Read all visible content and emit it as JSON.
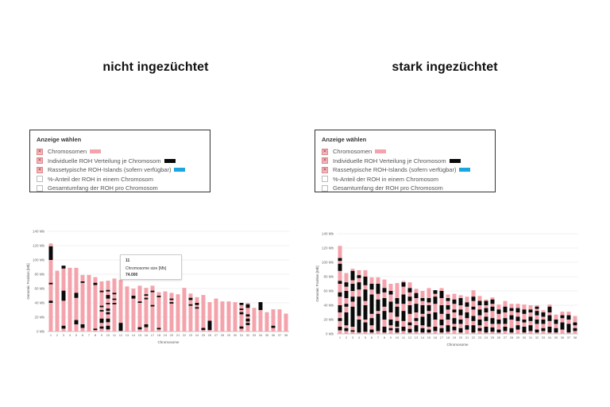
{
  "colors": {
    "chromosome": "#f4a3ac",
    "roh": "#0a0a0a",
    "islands": "#1aa7e0"
  },
  "legend": {
    "title": "Anzeige wählen",
    "items": [
      {
        "label": "Chromosomen",
        "checked": true,
        "swatch": "chromosome"
      },
      {
        "label": "Individuelle ROH Verteilung je Chromosom",
        "checked": true,
        "swatch": "roh"
      },
      {
        "label": "Rassetypische ROH-Islands (sofern verfügbar)",
        "checked": true,
        "swatch": "islands"
      },
      {
        "label": "%-Anteil der ROH in einem Chromosom",
        "checked": false,
        "swatch": ""
      },
      {
        "label": "Gesamtumfang der ROH pro Chromosom",
        "checked": false,
        "swatch": ""
      }
    ]
  },
  "panels": [
    {
      "heading": "nicht ingezüchtet",
      "tooltip": {
        "title": "11",
        "label": "Chromosome size [Mb]",
        "value": "74.000"
      }
    },
    {
      "heading": "stark ingezüchtet"
    }
  ],
  "chart_data": [
    {
      "type": "bar",
      "title": "nicht ingezüchtet",
      "xlabel": "Chromosome",
      "ylabel": "Genomic Position [Mb]",
      "ylim": [
        0,
        140
      ],
      "yticks": [
        0,
        20,
        40,
        60,
        80,
        100,
        120,
        140
      ],
      "ytick_labels": [
        "0 Mb",
        "20 Mb",
        "40 Mb",
        "60 Mb",
        "80 Mb",
        "100 Mb",
        "120 Mb",
        "140 Mb"
      ],
      "categories": [
        "1",
        "2",
        "3",
        "4",
        "5",
        "6",
        "7",
        "8",
        "9",
        "10",
        "11",
        "12",
        "13",
        "14",
        "15",
        "16",
        "17",
        "18",
        "19",
        "20",
        "21",
        "22",
        "23",
        "24",
        "25",
        "26",
        "27",
        "28",
        "29",
        "30",
        "31",
        "32",
        "33",
        "34",
        "35",
        "36",
        "37",
        "38"
      ],
      "values": [
        123,
        85,
        91,
        89,
        89,
        79,
        79,
        76,
        70,
        71,
        74,
        72,
        63,
        60,
        64,
        61,
        64,
        55,
        56,
        54,
        52,
        61,
        53,
        48,
        51,
        41,
        46,
        42,
        42,
        41,
        40,
        40,
        33,
        41,
        27,
        31,
        31,
        25
      ],
      "roh_segments": [
        [
          [
            40,
            43
          ],
          [
            66,
            68
          ],
          [
            100,
            119
          ]
        ],
        [],
        [
          [
            4,
            8
          ],
          [
            43,
            57
          ],
          [
            88,
            92
          ]
        ],
        [],
        [
          [
            10,
            16
          ],
          [
            47,
            54
          ]
        ],
        [
          [
            5,
            10
          ],
          [
            68,
            70
          ]
        ],
        [],
        [
          [
            2,
            4
          ],
          [
            65,
            68
          ]
        ],
        [
          [
            4,
            7
          ],
          [
            12,
            18
          ],
          [
            28,
            30
          ],
          [
            34,
            36
          ],
          [
            55,
            57
          ]
        ],
        [
          [
            3,
            8
          ],
          [
            13,
            18
          ],
          [
            24,
            27
          ],
          [
            29,
            32
          ],
          [
            38,
            40
          ],
          [
            46,
            51
          ],
          [
            56,
            58
          ]
        ],
        [
          [
            38,
            40
          ],
          [
            44,
            46
          ],
          [
            52,
            54
          ]
        ],
        [
          [
            1,
            12
          ]
        ],
        [],
        [
          [
            46,
            50
          ]
        ],
        [
          [
            3,
            6
          ],
          [
            40,
            42
          ]
        ],
        [
          [
            6,
            10
          ],
          [
            45,
            47
          ],
          [
            50,
            52
          ]
        ],
        [
          [
            35,
            37
          ],
          [
            55,
            57
          ]
        ],
        [
          [
            3,
            5
          ],
          [
            48,
            50
          ]
        ],
        [],
        [
          [
            39,
            41
          ],
          [
            44,
            46
          ]
        ],
        [],
        [],
        [
          [
            36,
            38
          ],
          [
            44,
            47
          ]
        ],
        [
          [
            32,
            34
          ],
          [
            37,
            40
          ]
        ],
        [
          [
            2,
            5
          ]
        ],
        [
          [
            2,
            15
          ]
        ],
        [],
        [],
        [],
        [],
        [
          [
            4,
            7
          ],
          [
            24,
            27
          ],
          [
            30,
            32
          ],
          [
            37,
            40
          ]
        ],
        [
          [
            9,
            12
          ],
          [
            14,
            18
          ],
          [
            21,
            24
          ],
          [
            33,
            38
          ]
        ],
        [],
        [
          [
            30,
            41
          ]
        ],
        [],
        [
          [
            5,
            8
          ]
        ],
        [],
        []
      ]
    },
    {
      "type": "bar",
      "title": "stark ingezüchtet",
      "xlabel": "Chromosome",
      "ylabel": "Genomic Position [Mb]",
      "ylim": [
        0,
        140
      ],
      "yticks": [
        0,
        20,
        40,
        60,
        80,
        100,
        120,
        140
      ],
      "ytick_labels": [
        "0 Mb",
        "20 Mb",
        "40 Mb",
        "60 Mb",
        "80 Mb",
        "100 Mb",
        "120 Mb",
        "140 Mb"
      ],
      "categories": [
        "1",
        "2",
        "3",
        "4",
        "5",
        "6",
        "7",
        "8",
        "9",
        "10",
        "11",
        "12",
        "13",
        "14",
        "15",
        "16",
        "17",
        "18",
        "19",
        "20",
        "21",
        "22",
        "23",
        "24",
        "25",
        "26",
        "27",
        "28",
        "29",
        "30",
        "31",
        "32",
        "33",
        "34",
        "35",
        "36",
        "37",
        "38"
      ],
      "values": [
        123,
        85,
        91,
        89,
        89,
        79,
        79,
        76,
        70,
        71,
        74,
        72,
        63,
        60,
        64,
        61,
        64,
        55,
        56,
        54,
        52,
        61,
        53,
        48,
        51,
        41,
        46,
        42,
        42,
        41,
        40,
        40,
        33,
        41,
        27,
        31,
        31,
        25
      ],
      "roh_segments": [
        [
          [
            5,
            10
          ],
          [
            18,
            22
          ],
          [
            30,
            40
          ],
          [
            52,
            58
          ],
          [
            70,
            74
          ],
          [
            88,
            98
          ],
          [
            102,
            106
          ]
        ],
        [
          [
            4,
            8
          ],
          [
            12,
            30
          ],
          [
            38,
            42
          ],
          [
            50,
            60
          ],
          [
            66,
            72
          ]
        ],
        [
          [
            3,
            5
          ],
          [
            10,
            38
          ],
          [
            45,
            52
          ],
          [
            60,
            70
          ],
          [
            75,
            88
          ]
        ],
        [
          [
            2,
            20
          ],
          [
            25,
            52
          ],
          [
            62,
            72
          ],
          [
            78,
            82
          ]
        ],
        [
          [
            3,
            16
          ],
          [
            20,
            40
          ],
          [
            46,
            62
          ],
          [
            68,
            80
          ]
        ],
        [
          [
            2,
            6
          ],
          [
            12,
            22
          ],
          [
            28,
            55
          ],
          [
            62,
            70
          ]
        ],
        [
          [
            4,
            28
          ],
          [
            32,
            48
          ],
          [
            56,
            70
          ]
        ],
        [
          [
            2,
            10
          ],
          [
            20,
            32
          ],
          [
            38,
            50
          ],
          [
            58,
            64
          ]
        ],
        [
          [
            5,
            8
          ],
          [
            12,
            20
          ],
          [
            30,
            45
          ],
          [
            55,
            60
          ]
        ],
        [
          [
            2,
            8
          ],
          [
            10,
            18
          ],
          [
            24,
            38
          ],
          [
            42,
            50
          ]
        ],
        [
          [
            4,
            10
          ],
          [
            18,
            32
          ],
          [
            42,
            55
          ],
          [
            66,
            72
          ]
        ],
        [
          [
            2,
            7
          ],
          [
            12,
            16
          ],
          [
            28,
            40
          ],
          [
            46,
            52
          ],
          [
            58,
            64
          ]
        ],
        [
          [
            3,
            12
          ],
          [
            18,
            22
          ],
          [
            30,
            42
          ],
          [
            50,
            57
          ]
        ],
        [
          [
            2,
            8
          ],
          [
            12,
            24
          ],
          [
            28,
            40
          ],
          [
            46,
            50
          ]
        ],
        [
          [
            2,
            6
          ],
          [
            10,
            28
          ],
          [
            32,
            40
          ],
          [
            44,
            50
          ]
        ],
        [
          [
            4,
            10
          ],
          [
            20,
            30
          ],
          [
            42,
            52
          ],
          [
            56,
            61
          ]
        ],
        [
          [
            2,
            8
          ],
          [
            12,
            20
          ],
          [
            28,
            40
          ],
          [
            50,
            60
          ]
        ],
        [
          [
            3,
            12
          ],
          [
            20,
            28
          ],
          [
            34,
            40
          ],
          [
            46,
            50
          ]
        ],
        [
          [
            5,
            10
          ],
          [
            14,
            22
          ],
          [
            30,
            34
          ],
          [
            42,
            48
          ]
        ],
        [
          [
            2,
            8
          ],
          [
            14,
            20
          ],
          [
            26,
            34
          ],
          [
            40,
            50
          ]
        ],
        [
          [
            6,
            12
          ],
          [
            22,
            30
          ],
          [
            38,
            44
          ]
        ],
        [
          [
            2,
            12
          ],
          [
            18,
            25
          ],
          [
            34,
            38
          ],
          [
            46,
            52
          ]
        ],
        [
          [
            4,
            8
          ],
          [
            12,
            20
          ],
          [
            26,
            34
          ],
          [
            40,
            46
          ]
        ],
        [
          [
            2,
            10
          ],
          [
            18,
            24
          ],
          [
            30,
            36
          ],
          [
            40,
            46
          ]
        ],
        [
          [
            3,
            9
          ],
          [
            14,
            22
          ],
          [
            32,
            38
          ],
          [
            42,
            48
          ]
        ],
        [
          [
            2,
            6
          ],
          [
            14,
            20
          ],
          [
            28,
            34
          ]
        ],
        [
          [
            4,
            10
          ],
          [
            14,
            22
          ],
          [
            30,
            38
          ]
        ],
        [
          [
            2,
            8
          ],
          [
            20,
            26
          ],
          [
            32,
            36
          ]
        ],
        [
          [
            6,
            12
          ],
          [
            18,
            24
          ],
          [
            30,
            36
          ]
        ],
        [
          [
            2,
            10
          ],
          [
            16,
            20
          ],
          [
            28,
            34
          ]
        ],
        [
          [
            4,
            12
          ],
          [
            18,
            24
          ],
          [
            30,
            34
          ]
        ],
        [
          [
            2,
            6
          ],
          [
            14,
            20
          ],
          [
            26,
            32
          ],
          [
            35,
            38
          ]
        ],
        [
          [
            4,
            8
          ],
          [
            14,
            20
          ],
          [
            24,
            30
          ]
        ],
        [
          [
            2,
            10
          ],
          [
            18,
            26
          ],
          [
            30,
            38
          ]
        ],
        [
          [
            2,
            8
          ],
          [
            14,
            20
          ]
        ],
        [
          [
            6,
            16
          ],
          [
            22,
            26
          ]
        ],
        [
          [
            2,
            14
          ],
          [
            20,
            26
          ]
        ],
        [
          [
            4,
            8
          ],
          [
            12,
            16
          ]
        ]
      ]
    }
  ]
}
